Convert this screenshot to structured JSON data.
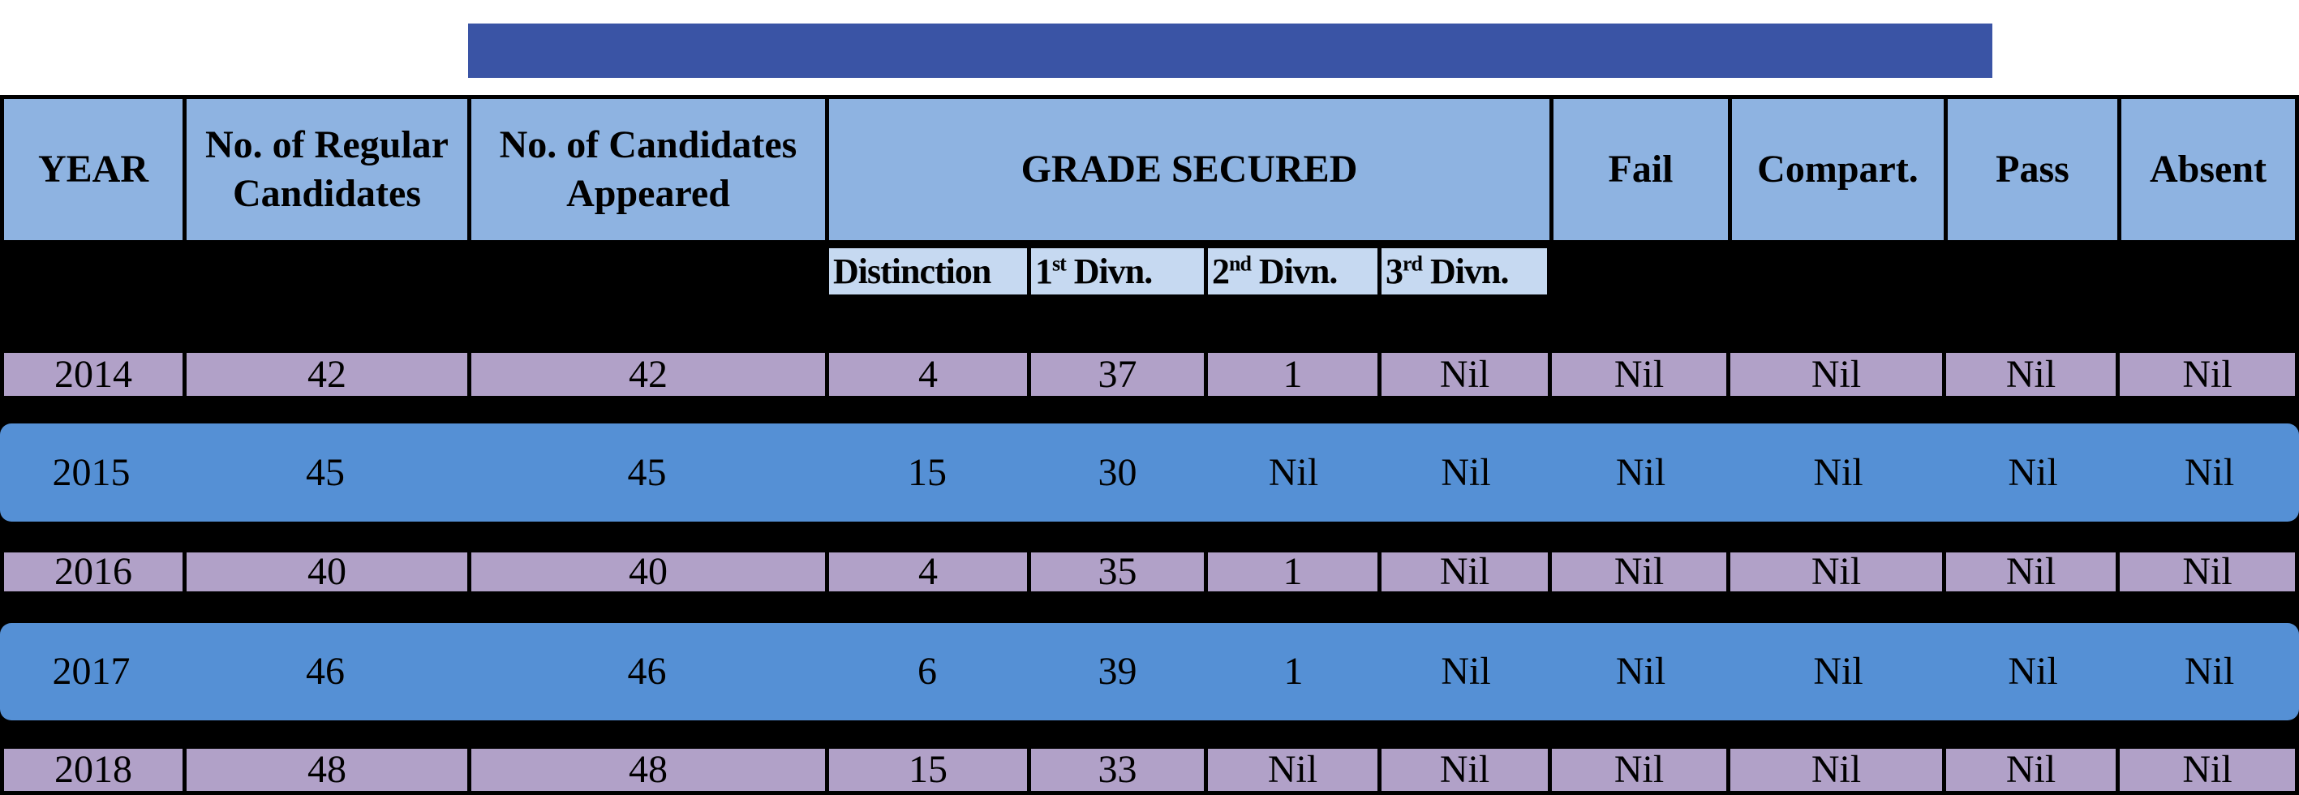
{
  "colors": {
    "banner_blue": "#3a54a5",
    "header_blue": "#8eb3e1",
    "subheader_blue": "#c6d9f1",
    "row_purple": "#b1a1c8",
    "row_blue": "#5590d5",
    "table_grid": "#000000",
    "page_background": "#ffffff"
  },
  "table": {
    "headers": {
      "year": "YEAR",
      "regular": "No. of Regular Candidates",
      "appeared": "No. of Candidates Appeared",
      "grade_secured": "GRADE SECURED",
      "fail": "Fail",
      "compart": "Compart.",
      "pass": "Pass",
      "absent": "Absent"
    },
    "grade_subheaders": [
      {
        "base": "Distinction",
        "sup": "",
        "rest": ""
      },
      {
        "base": "1",
        "sup": "st",
        "rest": " Divn."
      },
      {
        "base": "2",
        "sup": "nd",
        "rest": " Divn."
      },
      {
        "base": "3",
        "sup": "rd",
        "rest": " Divn."
      }
    ],
    "rows": [
      {
        "style": "purple",
        "cells": [
          "2014",
          "42",
          "42",
          "4",
          "37",
          "1",
          "Nil",
          "Nil",
          "Nil",
          "Nil",
          "Nil"
        ]
      },
      {
        "style": "blue",
        "cells": [
          "2015",
          "45",
          "45",
          "15",
          "30",
          "Nil",
          "Nil",
          "Nil",
          "Nil",
          "Nil",
          "Nil"
        ]
      },
      {
        "style": "purple",
        "cells": [
          "2016",
          "40",
          "40",
          "4",
          "35",
          "1",
          "Nil",
          "Nil",
          "Nil",
          "Nil",
          "Nil"
        ]
      },
      {
        "style": "blue",
        "cells": [
          "2017",
          "46",
          "46",
          "6",
          "39",
          "1",
          "Nil",
          "Nil",
          "Nil",
          "Nil",
          "Nil"
        ]
      },
      {
        "style": "purple",
        "cells": [
          "2018",
          "48",
          "48",
          "15",
          "33",
          "Nil",
          "Nil",
          "Nil",
          "Nil",
          "Nil",
          "Nil"
        ]
      }
    ]
  }
}
